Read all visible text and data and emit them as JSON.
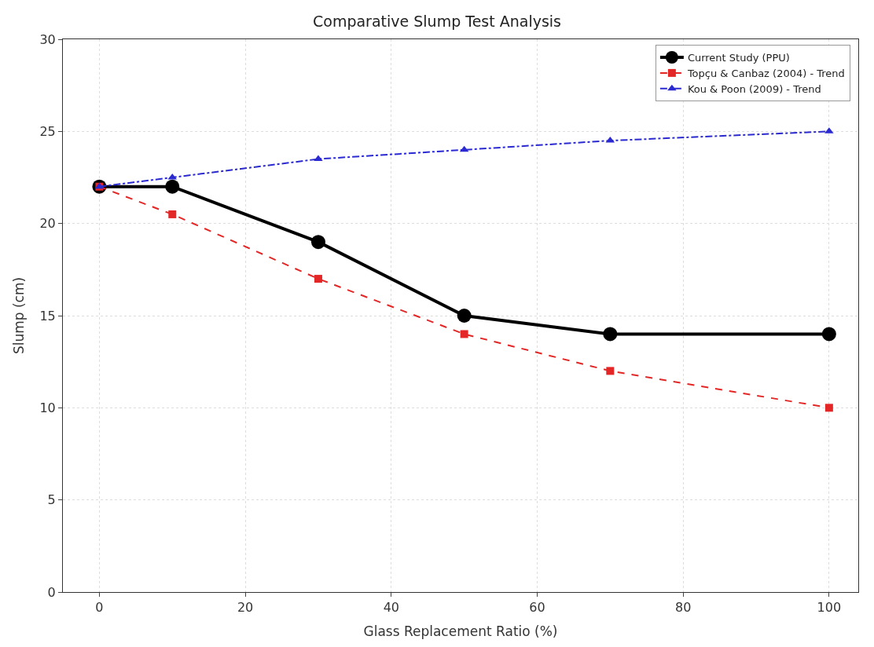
{
  "chart_data": {
    "type": "line",
    "title": "Comparative Slump Test Analysis",
    "xlabel": "Glass Replacement Ratio (%)",
    "ylabel": "Slump (cm)",
    "x": [
      0,
      10,
      30,
      50,
      70,
      100
    ],
    "series": [
      {
        "name": "Current Study (PPU)",
        "color": "#000000",
        "values": [
          22,
          22,
          19,
          15,
          14,
          14
        ],
        "marker": "circle",
        "line_style": "solid"
      },
      {
        "name": "Topçu & Canbaz (2004) - Trend",
        "color": "#e32626",
        "values": [
          22,
          20.5,
          17,
          14,
          12,
          10
        ],
        "marker": "square",
        "line_style": "dashed"
      },
      {
        "name": "Kou & Poon (2009) - Trend",
        "color": "#2a2ad0",
        "values": [
          22,
          22.5,
          23.5,
          24,
          24.5,
          25
        ],
        "marker": "triangle",
        "line_style": "dashdot"
      }
    ],
    "xlim": [
      -5,
      104
    ],
    "xticks": [
      0,
      20,
      40,
      60,
      80,
      100
    ],
    "ylim": [
      0,
      30
    ],
    "yticks": [
      0,
      5,
      10,
      15,
      20,
      25,
      30
    ],
    "grid": true,
    "legend": "top right"
  }
}
